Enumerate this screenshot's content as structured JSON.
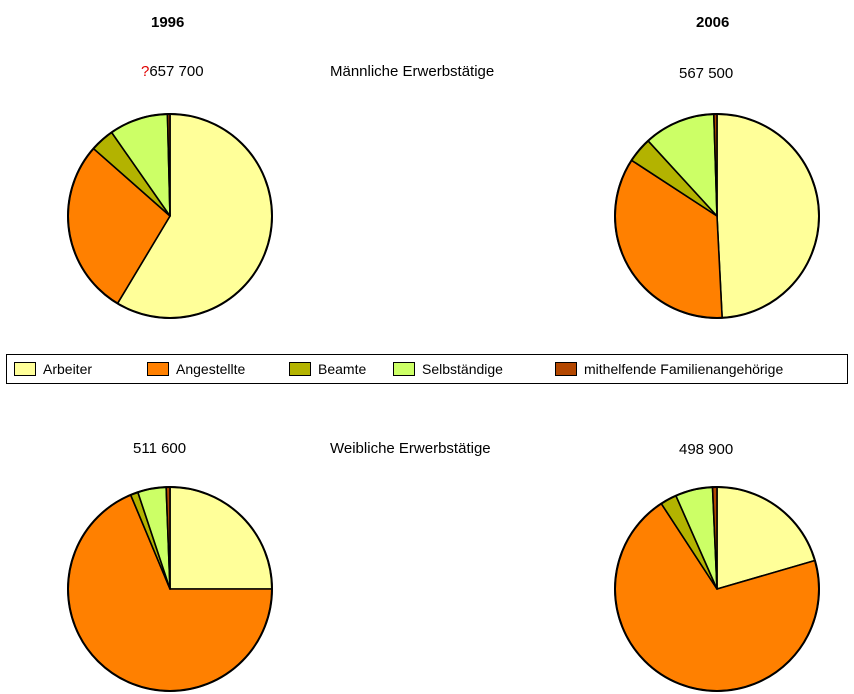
{
  "header": {
    "year_left": "1996",
    "year_right": "2006"
  },
  "male": {
    "title": "Männliche Erwerbstätige",
    "left_total_mark": "?",
    "left_total": "657 700",
    "right_total": "567 500"
  },
  "female": {
    "title": "Weibliche Erwerbstätige",
    "left_total": "511 600",
    "right_total": "498 900"
  },
  "legend": {
    "items": [
      {
        "label": "Arbeiter",
        "color": "#ffff99"
      },
      {
        "label": "Angestellte",
        "color": "#ff8000"
      },
      {
        "label": "Beamte",
        "color": "#b3b300"
      },
      {
        "label": "Selbständige",
        "color": "#ccff66"
      },
      {
        "label": "mithelfende Familienangehörige",
        "color": "#b34700"
      }
    ]
  },
  "chart_data": [
    {
      "type": "pie",
      "title": "Männliche Erwerbstätige",
      "year": "1996",
      "total": "657 700",
      "categories": [
        "Arbeiter",
        "Angestellte",
        "Beamte",
        "Selbständige",
        "mithelfende Familienangehörige"
      ],
      "values": [
        58.6,
        27.9,
        3.8,
        9.3,
        0.4
      ]
    },
    {
      "type": "pie",
      "title": "Männliche Erwerbstätige",
      "year": "2006",
      "total": "567 500",
      "categories": [
        "Arbeiter",
        "Angestellte",
        "Beamte",
        "Selbständige",
        "mithelfende Familienangehörige"
      ],
      "values": [
        49.2,
        35.0,
        4.0,
        11.3,
        0.5
      ]
    },
    {
      "type": "pie",
      "title": "Weibliche Erwerbstätige",
      "year": "1996",
      "total": "511 600",
      "categories": [
        "Arbeiter",
        "Angestellte",
        "Beamte",
        "Selbständige",
        "mithelfende Familienangehörige"
      ],
      "values": [
        25.0,
        68.7,
        1.2,
        4.5,
        0.6
      ]
    },
    {
      "type": "pie",
      "title": "Weibliche Erwerbstätige",
      "year": "2006",
      "total": "498 900",
      "categories": [
        "Arbeiter",
        "Angestellte",
        "Beamte",
        "Selbständige",
        "mithelfende Familienangehörige"
      ],
      "values": [
        20.5,
        70.3,
        2.6,
        5.9,
        0.7
      ]
    }
  ]
}
